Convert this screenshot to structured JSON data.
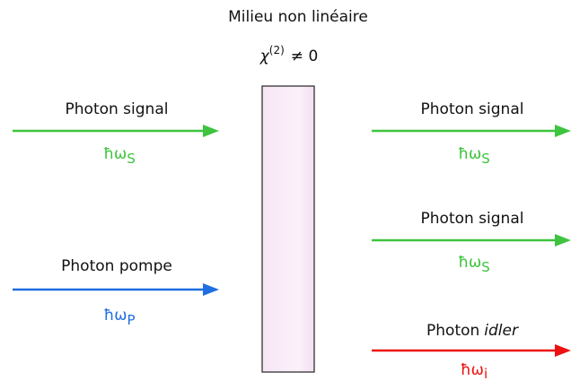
{
  "title": "Milieu non linéaire",
  "medium": {
    "symbol": "χ",
    "order": "(2)",
    "relation": "≠ 0"
  },
  "inputs": [
    {
      "label": "Photon signal",
      "energy": "ħω",
      "sub": "S"
    },
    {
      "label": "Photon pompe",
      "energy": "ħω",
      "sub": "P"
    }
  ],
  "outputs": [
    {
      "label": "Photon signal",
      "energy": "ħω",
      "sub": "S"
    },
    {
      "label": "Photon signal",
      "energy": "ħω",
      "sub": "S"
    },
    {
      "label": "Photon",
      "label_em": "idler",
      "energy": "ħω",
      "sub": "i"
    }
  ]
}
